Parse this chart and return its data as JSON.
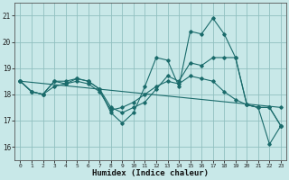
{
  "xlabel": "Humidex (Indice chaleur)",
  "bg_color": "#c8e8e8",
  "grid_color": "#90c0c0",
  "line_color": "#1a6b6b",
  "xlim": [
    -0.5,
    23.5
  ],
  "ylim": [
    15.5,
    21.5
  ],
  "yticks": [
    16,
    17,
    18,
    19,
    20,
    21
  ],
  "xticks": [
    0,
    1,
    2,
    3,
    4,
    5,
    6,
    7,
    8,
    9,
    10,
    11,
    12,
    13,
    14,
    15,
    16,
    17,
    18,
    19,
    20,
    21,
    22,
    23
  ],
  "line1_x": [
    0,
    1,
    2,
    3,
    4,
    5,
    6,
    7,
    8,
    9,
    10,
    11,
    12,
    13,
    14,
    15,
    16,
    17,
    18,
    19,
    20,
    21,
    22,
    23
  ],
  "line1_y": [
    18.5,
    18.1,
    18.0,
    18.5,
    18.5,
    18.6,
    18.5,
    18.2,
    17.3,
    16.9,
    17.3,
    18.3,
    19.4,
    19.3,
    18.3,
    20.4,
    20.3,
    20.9,
    20.3,
    19.4,
    17.6,
    17.5,
    16.1,
    16.8
  ],
  "line2_x": [
    0,
    1,
    2,
    3,
    4,
    5,
    6,
    7,
    8,
    9,
    10,
    11,
    12,
    13,
    14,
    15,
    16,
    17,
    18,
    19,
    20,
    21,
    22,
    23
  ],
  "line2_y": [
    18.5,
    18.1,
    18.0,
    18.5,
    18.4,
    18.6,
    18.5,
    18.2,
    17.5,
    17.3,
    17.5,
    17.7,
    18.2,
    18.7,
    18.5,
    19.2,
    19.1,
    19.4,
    19.4,
    19.4,
    17.6,
    17.5,
    17.5,
    16.8
  ],
  "line3_x": [
    0,
    23
  ],
  "line3_y": [
    18.5,
    17.5
  ],
  "line4_x": [
    0,
    1,
    2,
    3,
    4,
    5,
    6,
    7,
    8,
    9,
    10,
    11,
    12,
    13,
    14,
    15,
    16,
    17,
    18,
    19,
    20,
    21,
    22,
    23
  ],
  "line4_y": [
    18.5,
    18.1,
    18.0,
    18.3,
    18.4,
    18.5,
    18.4,
    18.1,
    17.4,
    17.5,
    17.7,
    18.0,
    18.3,
    18.5,
    18.4,
    18.7,
    18.6,
    18.5,
    18.1,
    17.8,
    17.6,
    17.5,
    17.5,
    16.8
  ]
}
